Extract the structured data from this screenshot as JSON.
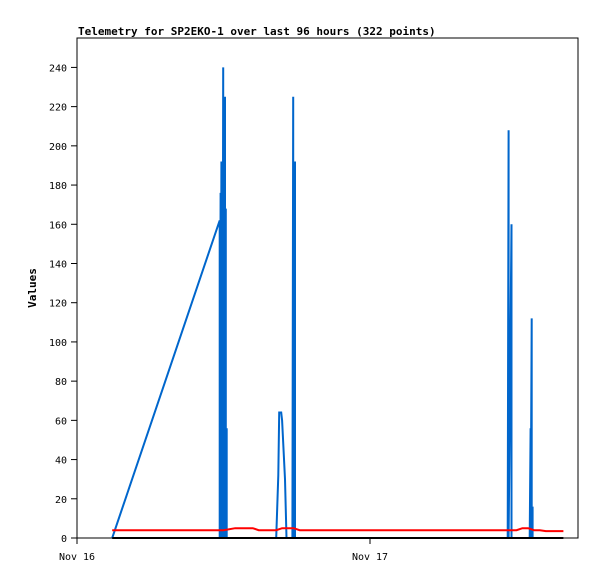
{
  "chart_data": {
    "type": "line",
    "title": "Telemetry for SP2EKO-1 over last 96 hours (322 points)",
    "xlabel": "",
    "ylabel": "Values",
    "ylim": [
      0,
      255
    ],
    "xlim": [
      0,
      1.72
    ],
    "x_unit": "days since Nov 16",
    "x_ticks": [
      {
        "value": 0,
        "label": "Nov 16"
      },
      {
        "value": 1,
        "label": "Nov 17"
      }
    ],
    "y_ticks": [
      0,
      20,
      40,
      60,
      80,
      100,
      120,
      140,
      160,
      180,
      200,
      220,
      240
    ],
    "grid": false,
    "legend": "none",
    "series": [
      {
        "color": "#0066cc",
        "points": [
          [
            0.12,
            0
          ],
          [
            0.487,
            162
          ],
          [
            0.487,
            0
          ],
          [
            0.49,
            176
          ],
          [
            0.49,
            0
          ],
          [
            0.493,
            192
          ],
          [
            0.493,
            0
          ],
          [
            0.496,
            176
          ],
          [
            0.496,
            0
          ],
          [
            0.499,
            240
          ],
          [
            0.499,
            0
          ],
          [
            0.502,
            120
          ],
          [
            0.502,
            0
          ],
          [
            0.505,
            225
          ],
          [
            0.505,
            0
          ],
          [
            0.508,
            168
          ],
          [
            0.508,
            0
          ],
          [
            0.511,
            56
          ],
          [
            0.511,
            0
          ],
          [
            0.68,
            0
          ],
          [
            0.687,
            32
          ],
          [
            0.69,
            64
          ],
          [
            0.697,
            64
          ],
          [
            0.7,
            60
          ],
          [
            0.71,
            30
          ],
          [
            0.715,
            0
          ],
          [
            0.735,
            0
          ],
          [
            0.738,
            225
          ],
          [
            0.738,
            0
          ],
          [
            0.741,
            112
          ],
          [
            0.741,
            0
          ],
          [
            0.744,
            192
          ],
          [
            0.744,
            0
          ],
          [
            0.747,
            0
          ],
          [
            1.47,
            0
          ],
          [
            1.473,
            208
          ],
          [
            1.473,
            0
          ],
          [
            1.483,
            160
          ],
          [
            1.483,
            0
          ],
          [
            1.545,
            0
          ],
          [
            1.548,
            56
          ],
          [
            1.548,
            0
          ],
          [
            1.552,
            112
          ],
          [
            1.552,
            0
          ],
          [
            1.555,
            16
          ],
          [
            1.555,
            0
          ],
          [
            1.56,
            0
          ]
        ]
      },
      {
        "color": "#ff0000",
        "points": [
          [
            0.12,
            4
          ],
          [
            0.5,
            4
          ],
          [
            0.54,
            5
          ],
          [
            0.6,
            5
          ],
          [
            0.62,
            4
          ],
          [
            0.68,
            4
          ],
          [
            0.7,
            5
          ],
          [
            0.74,
            5
          ],
          [
            0.76,
            4
          ],
          [
            1.5,
            4
          ],
          [
            1.52,
            5
          ],
          [
            1.54,
            5
          ],
          [
            1.56,
            4
          ],
          [
            1.58,
            4
          ],
          [
            1.6,
            3.5
          ],
          [
            1.66,
            3.5
          ]
        ]
      },
      {
        "color": "#000000",
        "points": [
          [
            0.12,
            0
          ],
          [
            1.66,
            0
          ]
        ]
      }
    ]
  }
}
